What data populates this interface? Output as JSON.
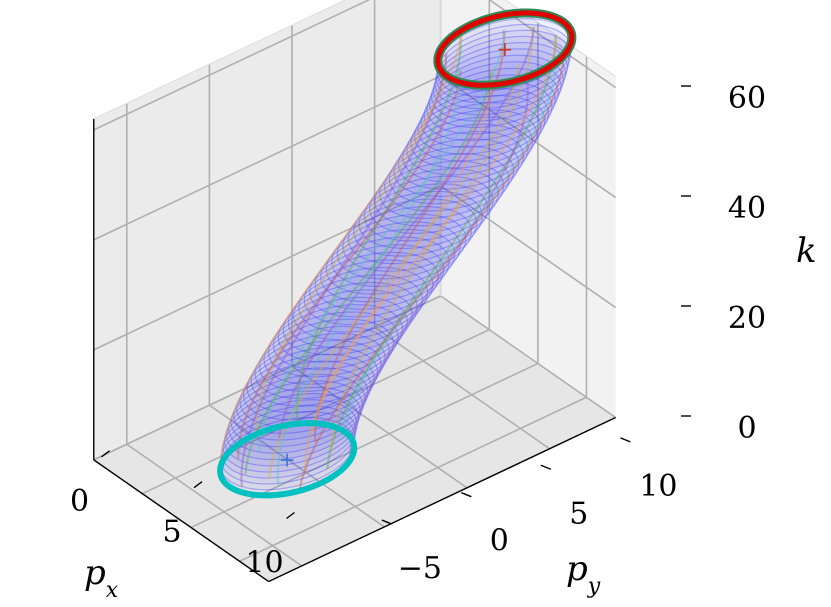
{
  "chart_data": {
    "type": "line3d",
    "title": "",
    "xlabel": "p_x",
    "ylabel": "p_y",
    "zlabel": "k",
    "x_ticks": [
      "0",
      "5",
      "10"
    ],
    "y_ticks": [
      "−5",
      "0",
      "5",
      "10"
    ],
    "z_ticks": [
      "0",
      "20",
      "40",
      "60"
    ],
    "xlim": [
      -5,
      13
    ],
    "ylim": [
      -7,
      14
    ],
    "zlim": [
      0,
      62
    ],
    "grid": true,
    "tube": {
      "radius": 3.5,
      "k_start": 0,
      "k_end": 60,
      "center_start": [
        3,
        0
      ],
      "center_end": [
        5,
        12
      ],
      "num_rings": 60
    },
    "start_circle_color": "#00c0c0",
    "end_circle_color": "#e00000",
    "end_circle_outline": "#2e8b57",
    "ring_color": "#3333ff",
    "trajectory_colors": [
      "#f0a050",
      "#50b050",
      "#9060c0",
      "#d0b040",
      "#60c0c0",
      "#c06060"
    ],
    "start_marker": "+",
    "end_marker": "+"
  }
}
